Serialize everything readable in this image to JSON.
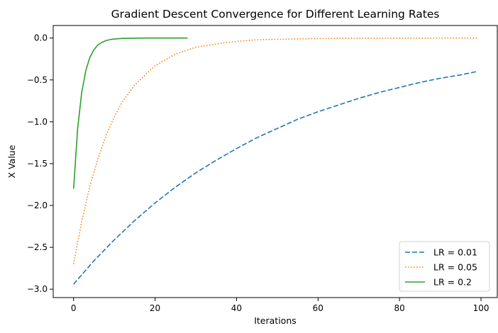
{
  "chart_data": {
    "type": "line",
    "title": "Gradient Descent Convergence for Different Learning Rates",
    "xlabel": "Iterations",
    "ylabel": "X Value",
    "xlim": [
      -5,
      104
    ],
    "ylim": [
      -3.1,
      0.15
    ],
    "xticks": [
      0,
      20,
      40,
      60,
      80,
      100
    ],
    "yticks": [
      0.0,
      -0.5,
      -1.0,
      -1.5,
      -2.0,
      -2.5,
      -3.0
    ],
    "xtick_labels": [
      "0",
      "20",
      "40",
      "60",
      "80",
      "100"
    ],
    "ytick_labels": [
      "0.0",
      "−0.5",
      "−1.0",
      "−1.5",
      "−2.0",
      "−2.5",
      "−3.0"
    ],
    "grid": false,
    "legend_position": "lower-right",
    "series": [
      {
        "name": "LR = 0.01",
        "color": "#1f77b4",
        "style": "dashed",
        "x": [
          0,
          5,
          10,
          15,
          20,
          25,
          30,
          35,
          40,
          45,
          50,
          55,
          60,
          65,
          70,
          75,
          80,
          85,
          90,
          95,
          99
        ],
        "y": [
          -2.94,
          -2.66,
          -2.41,
          -2.18,
          -1.97,
          -1.78,
          -1.61,
          -1.46,
          -1.32,
          -1.19,
          -1.08,
          -0.97,
          -0.88,
          -0.8,
          -0.72,
          -0.65,
          -0.59,
          -0.53,
          -0.48,
          -0.44,
          -0.4
        ]
      },
      {
        "name": "LR = 0.05",
        "color": "#ff7f0e",
        "style": "dotted",
        "x": [
          0,
          2,
          4,
          6,
          8,
          10,
          12,
          15,
          20,
          25,
          30,
          35,
          40,
          45,
          50,
          60,
          70,
          80,
          90,
          99
        ],
        "y": [
          -2.7,
          -2.19,
          -1.77,
          -1.44,
          -1.16,
          -0.94,
          -0.76,
          -0.56,
          -0.33,
          -0.19,
          -0.11,
          -0.07,
          -0.04,
          -0.02,
          -0.015,
          -0.005,
          -0.002,
          -0.001,
          0.0,
          0.0
        ]
      },
      {
        "name": "LR = 0.2",
        "color": "#2ca02c",
        "style": "solid",
        "x": [
          0,
          1,
          2,
          3,
          4,
          5,
          6,
          7,
          8,
          9,
          10,
          12,
          14,
          16,
          18,
          20,
          22,
          24,
          26,
          28
        ],
        "y": [
          -1.8,
          -1.08,
          -0.65,
          -0.39,
          -0.23,
          -0.14,
          -0.08,
          -0.05,
          -0.03,
          -0.018,
          -0.011,
          -0.004,
          -0.0014,
          -0.0005,
          0.0,
          0.0,
          0.0,
          0.0,
          0.0,
          0.0
        ]
      }
    ]
  }
}
